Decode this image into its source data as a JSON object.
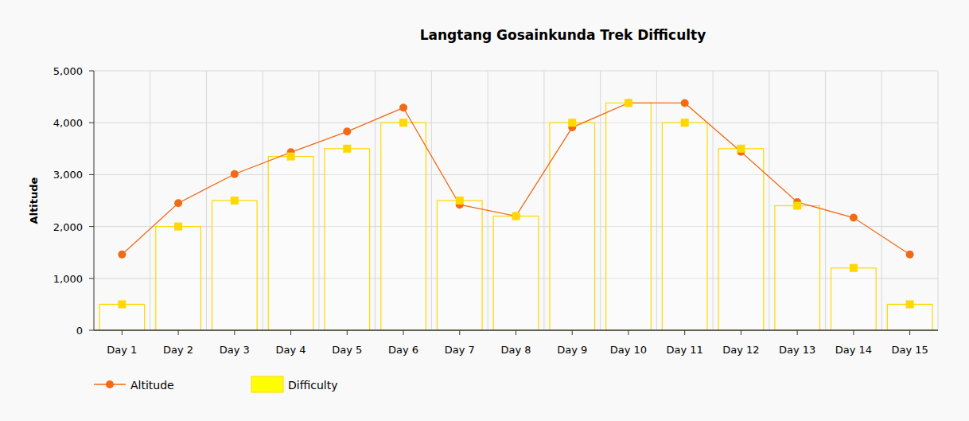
{
  "chart_data": {
    "type": "bar",
    "title": "Langtang Gosainkunda Trek Difficulty",
    "y_label": "Altitude",
    "categories": [
      "Day 1",
      "Day 2",
      "Day 3",
      "Day 4",
      "Day 5",
      "Day 6",
      "Day 7",
      "Day 8",
      "Day 9",
      "Day 10",
      "Day 11",
      "Day 12",
      "Day 13",
      "Day 14",
      "Day 15"
    ],
    "series": [
      {
        "name": "Altitude",
        "type": "line",
        "color": "#f26a16",
        "marker": "circle",
        "values": [
          1460,
          2450,
          3010,
          3430,
          3830,
          4290,
          2420,
          2200,
          3910,
          4380,
          4380,
          3440,
          2470,
          2170,
          1460
        ]
      },
      {
        "name": "Difficulty",
        "type": "bar",
        "color": "#ffd800",
        "marker": "square",
        "values": [
          500,
          2000,
          2500,
          3350,
          3500,
          4000,
          2500,
          2200,
          4000,
          4380,
          4000,
          3500,
          2400,
          1200,
          500
        ]
      }
    ],
    "ylim": [
      0,
      5000
    ],
    "yticks": [
      0,
      {
        "value": 1000,
        "label": "1,000"
      },
      {
        "value": 2000,
        "label": "2,000"
      },
      {
        "value": 3000,
        "label": "3,000"
      },
      {
        "value": 4000,
        "label": "4,000"
      },
      {
        "value": 5000,
        "label": "5,000"
      }
    ],
    "grid": true,
    "legend": "bottom-left"
  }
}
